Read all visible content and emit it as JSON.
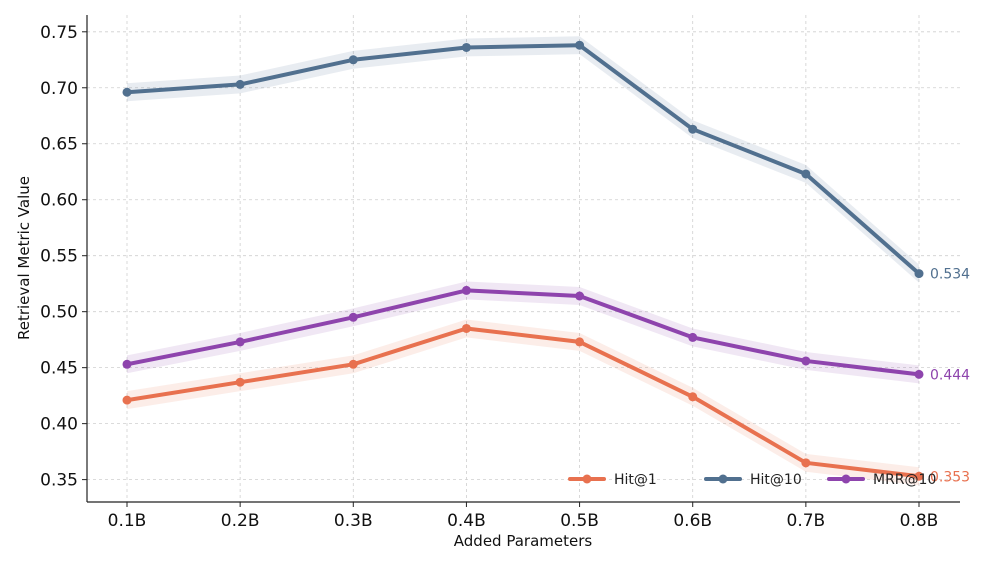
{
  "chart_data": {
    "type": "line",
    "title": "",
    "xlabel": "Added Parameters",
    "ylabel": "Retrieval Metric Value",
    "categories": [
      "0.1B",
      "0.2B",
      "0.3B",
      "0.4B",
      "0.5B",
      "0.6B",
      "0.7B",
      "0.8B"
    ],
    "ylim": [
      0.33,
      0.765
    ],
    "yticks": [
      0.35,
      0.4,
      0.45,
      0.5,
      0.55,
      0.6,
      0.65,
      0.7,
      0.75
    ],
    "ytick_labels": [
      "0.35",
      "0.40",
      "0.45",
      "0.50",
      "0.55",
      "0.60",
      "0.65",
      "0.70",
      "0.75"
    ],
    "grid": true,
    "legend_position": "bottom-right",
    "band_halfwidth": 0.008,
    "series": [
      {
        "name": "Hit@1",
        "color": "#e8714f",
        "values": [
          0.421,
          0.437,
          0.453,
          0.485,
          0.473,
          0.424,
          0.365,
          0.353
        ],
        "end_label": "0.353"
      },
      {
        "name": "Hit@10",
        "color": "#51708f",
        "values": [
          0.696,
          0.703,
          0.725,
          0.736,
          0.738,
          0.663,
          0.623,
          0.534
        ],
        "end_label": "0.534"
      },
      {
        "name": "MRR@10",
        "color": "#8e44ad",
        "values": [
          0.453,
          0.473,
          0.495,
          0.519,
          0.514,
          0.477,
          0.456,
          0.444
        ],
        "end_label": "0.444"
      }
    ]
  }
}
